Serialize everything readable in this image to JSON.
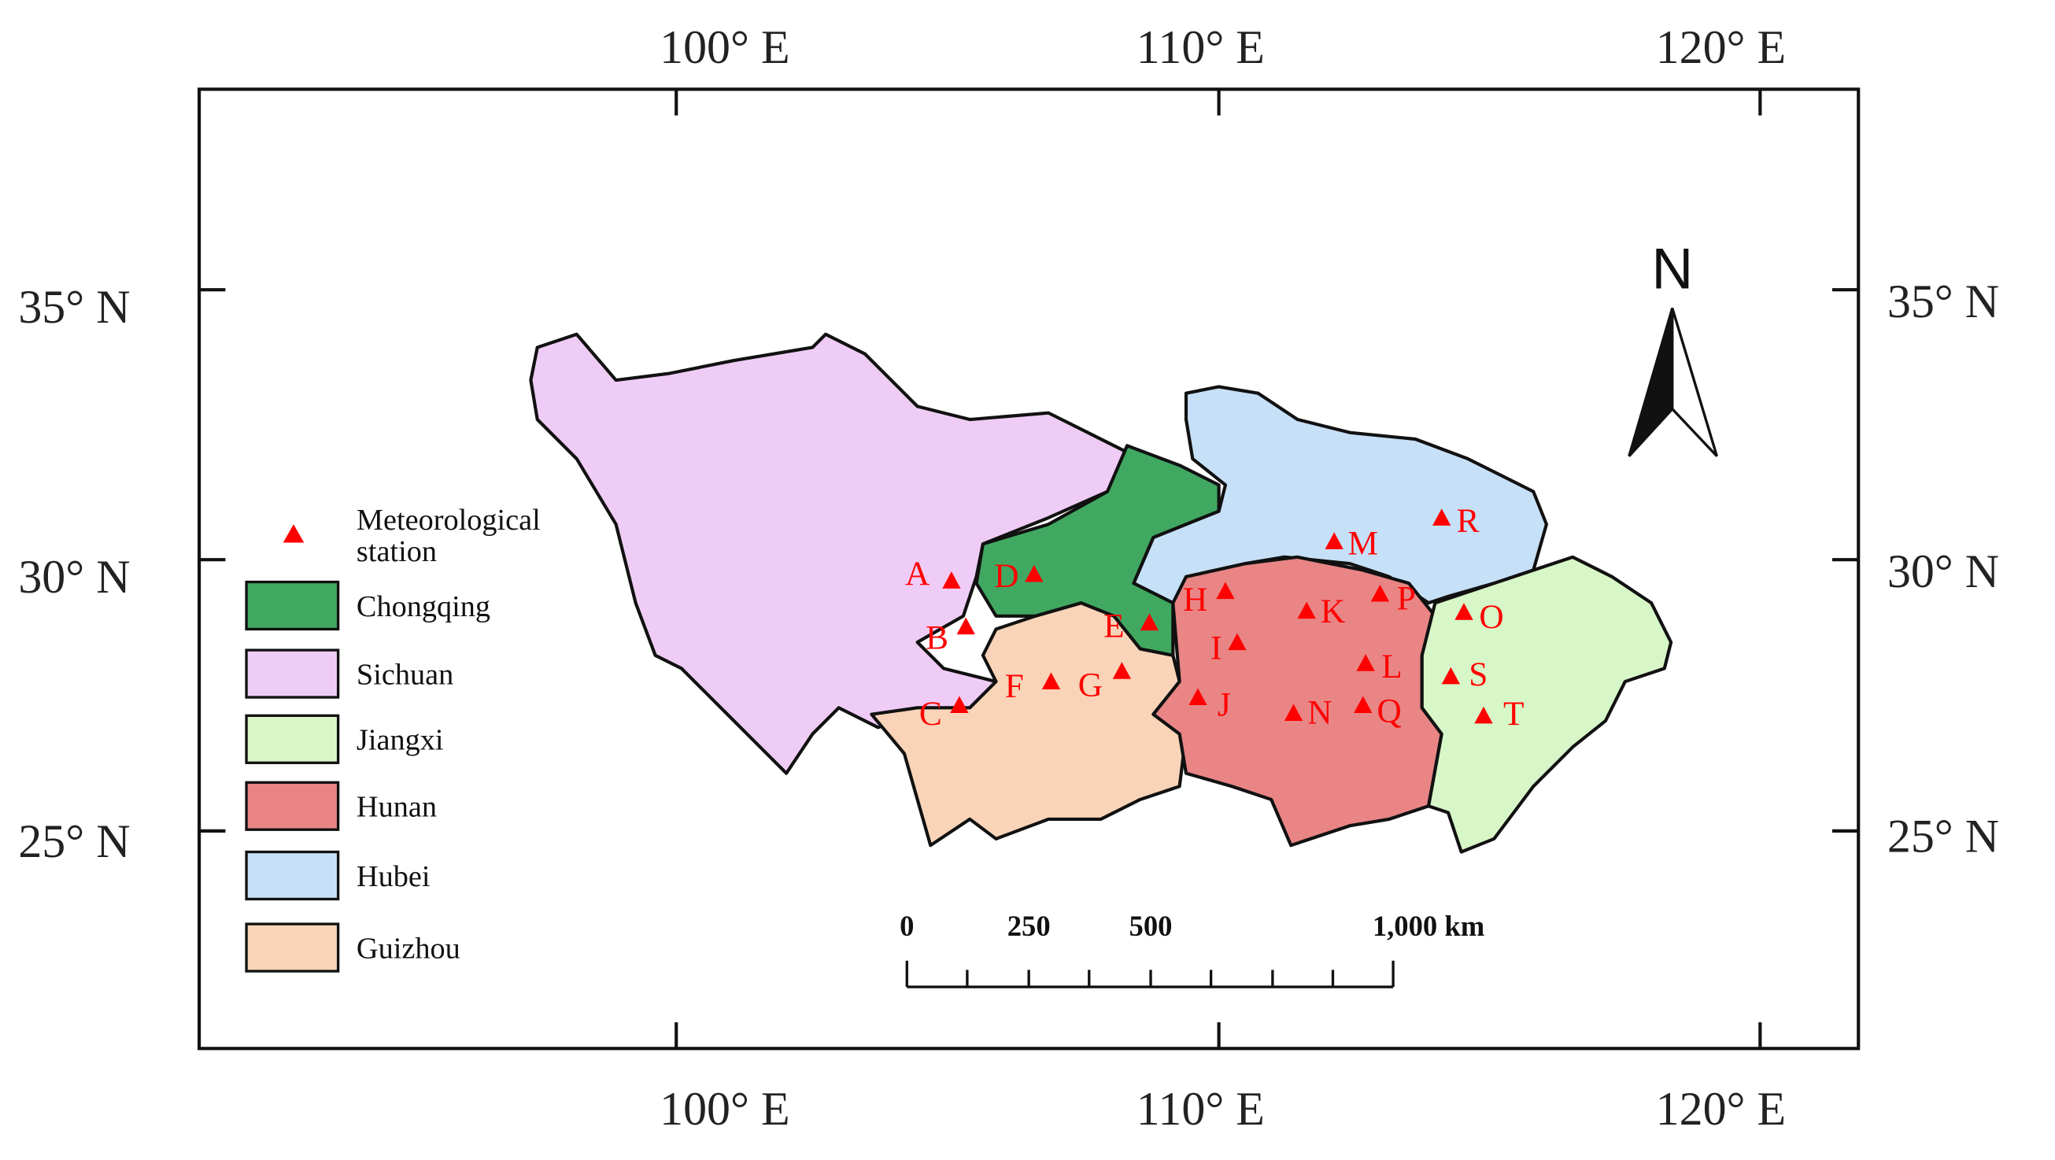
{
  "map": {
    "lon_labels_top": [
      "100° E",
      "110° E",
      "120° E"
    ],
    "lon_labels_bottom": [
      "100° E",
      "110° E",
      "120° E"
    ],
    "lat_labels_left": [
      "35° N",
      "30° N",
      "25° N"
    ],
    "lat_labels_right": [
      "35° N",
      "30° N",
      "25° N"
    ],
    "north": "N",
    "legend": {
      "station": [
        "Meteorological",
        "station"
      ],
      "regions": [
        "Chongqing",
        "Sichuan",
        "Jiangxi",
        "Hunan",
        "Hubei",
        "Guizhou"
      ]
    },
    "stations": [
      "A",
      "B",
      "C",
      "D",
      "E",
      "F",
      "G",
      "H",
      "I",
      "J",
      "K",
      "L",
      "M",
      "N",
      "O",
      "P",
      "Q",
      "R",
      "S",
      "T"
    ],
    "scale_bar": [
      "0",
      "250",
      "500",
      "1,000 km"
    ]
  }
}
